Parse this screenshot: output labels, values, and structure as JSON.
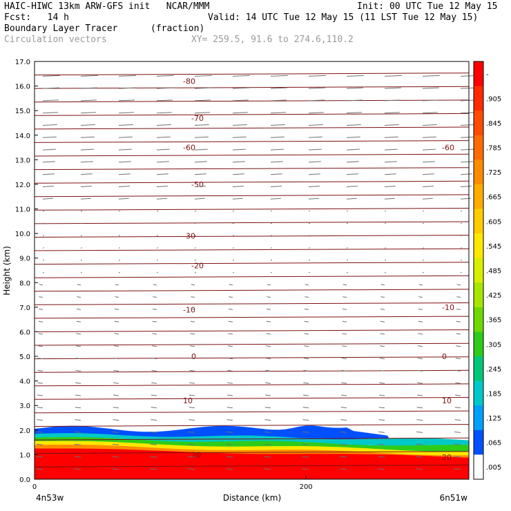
{
  "header": {
    "line1_left": "HAIC-HIWC 13km ARW-GFS init   NCAR/MMM",
    "line1_right": "Init: 00 UTC Tue 12 May 15",
    "line2_left": "Fcst:   14 h",
    "line2_right": "Valid: 14 UTC Tue 12 May 15 (11 LST Tue 12 May 15)",
    "line3_left": "Boundary Layer Tracer",
    "line3_mid": "(fraction)",
    "line4_left": "Circulation vectors",
    "line4_mid": "XY= 259.5, 91.6 to 274.6,110.2"
  },
  "chart_data": {
    "type": "heatmap",
    "ylabel": "Height (km)",
    "xlabel": "Distance (km)",
    "ylim": [
      0,
      17
    ],
    "xlim": [
      0,
      320
    ],
    "yticks": [
      "0.0",
      "1.0",
      "2.0",
      "3.0",
      "4.0",
      "5.0",
      "6.0",
      "7.0",
      "8.0",
      "9.0",
      "10.0",
      "11.0",
      "12.0",
      "13.0",
      "14.0",
      "15.0",
      "16.0",
      "17.0"
    ],
    "xticks": [
      {
        "value": 0,
        "label": "0"
      },
      {
        "value": 200,
        "label": "200"
      }
    ],
    "x_endpoints": {
      "left": "4n53w",
      "right": "6n51w"
    },
    "colorbar": {
      "labels": [
        "-",
        ".905",
        ".845",
        ".785",
        ".725",
        ".665",
        ".605",
        ".545",
        ".485",
        ".425",
        ".365",
        ".305",
        ".245",
        ".185",
        ".125",
        ".065",
        ".005"
      ],
      "colors": [
        "#ff0000",
        "#ff2a00",
        "#ff4a00",
        "#ff6a00",
        "#ff8c00",
        "#ffac00",
        "#ffcc00",
        "#ffe800",
        "#d8ee00",
        "#a6e600",
        "#6ed800",
        "#2ecc1a",
        "#00c878",
        "#00c8c8",
        "#00a0ff",
        "#0050ff",
        "#ffffff"
      ]
    },
    "temperature_contours": [
      {
        "label": "-80",
        "h": 16.2
      },
      {
        "label": "-70",
        "h": 14.7
      },
      {
        "label": "-60",
        "h": 13.5
      },
      {
        "label": "-50",
        "h": 12.0
      },
      {
        "label": "-30",
        "h": 9.9
      },
      {
        "label": "-20",
        "h": 8.7
      },
      {
        "label": "-10",
        "h": 6.9
      },
      {
        "label": "0",
        "h": 5.0
      },
      {
        "label": "10",
        "h": 3.2
      },
      {
        "label": "20",
        "h": 1.0
      }
    ],
    "right_labels": [
      {
        "label": "-60",
        "h": 13.5
      },
      {
        "label": "-10",
        "h": 7.0
      },
      {
        "label": "0",
        "h": 5.0
      },
      {
        "label": "10",
        "h": 3.2
      },
      {
        "label": "20",
        "h": 0.9
      }
    ]
  }
}
